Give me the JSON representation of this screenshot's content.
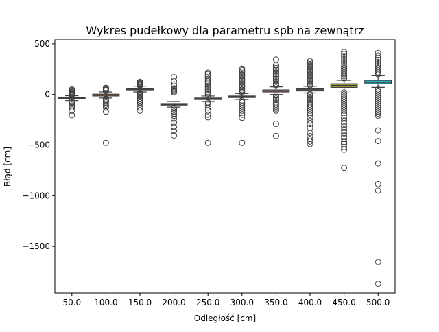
{
  "chart_data": {
    "type": "boxplot",
    "title": "Wykres pudełkowy dla parametru spb na zewnątrz",
    "xlabel": "Odległość [cm]",
    "ylabel": "Błąd [cm]",
    "ylim": [
      -1960,
      540
    ],
    "yticks": [
      500,
      0,
      -500,
      -1000,
      -1500
    ],
    "ytick_labels": [
      "500",
      "0",
      "−500",
      "−1000",
      "−1500"
    ],
    "grid": false,
    "legend": "none",
    "categories": [
      "50.0",
      "100.0",
      "150.0",
      "200.0",
      "250.0",
      "300.0",
      "350.0",
      "400.0",
      "450.0",
      "500.0"
    ],
    "boxes": [
      {
        "category": "50.0",
        "q1": -42,
        "median": -36,
        "q3": -30,
        "whislo": -60,
        "whishi": -12,
        "color": "#3274a1",
        "fliers": [
          50,
          40,
          30,
          22,
          15,
          8,
          2,
          -5,
          -70,
          -80,
          -95,
          -110,
          -130,
          -160,
          -205
        ]
      },
      {
        "category": "100.0",
        "q1": -15,
        "median": -6,
        "q3": 3,
        "whislo": -35,
        "whishi": 25,
        "color": "#e1812c",
        "fliers": [
          65,
          58,
          50,
          43,
          36,
          -45,
          -55,
          -65,
          -80,
          -100,
          -115,
          -130,
          -170,
          -478
        ]
      },
      {
        "category": "150.0",
        "q1": 45,
        "median": 52,
        "q3": 60,
        "whislo": 25,
        "whishi": 82,
        "color": "#3a923a",
        "fliers": [
          125,
          118,
          110,
          102,
          95,
          88,
          15,
          5,
          -5,
          -15,
          -25,
          -40,
          -60,
          -80,
          -100,
          -130,
          -160
        ]
      },
      {
        "category": "200.0",
        "q1": -105,
        "median": -98,
        "q3": -90,
        "whislo": -125,
        "whishi": -70,
        "color": "#c03d3e",
        "fliers": [
          170,
          130,
          100,
          80,
          60,
          50,
          40,
          30,
          20,
          -135,
          -150,
          -170,
          -190,
          -210,
          -240,
          -280,
          -320,
          -360,
          -405
        ]
      },
      {
        "category": "250.0",
        "q1": -50,
        "median": -42,
        "q3": -35,
        "whislo": -70,
        "whishi": -15,
        "color": "#9372b2",
        "fliers": [
          215,
          200,
          185,
          170,
          150,
          130,
          115,
          100,
          85,
          70,
          55,
          40,
          25,
          10,
          -5,
          -80,
          -100,
          -130,
          -160,
          -200,
          -225,
          -478
        ]
      },
      {
        "category": "300.0",
        "q1": -30,
        "median": -22,
        "q3": -15,
        "whislo": -50,
        "whishi": 10,
        "color": "#845b53",
        "fliers": [
          255,
          240,
          225,
          210,
          195,
          180,
          165,
          150,
          135,
          120,
          105,
          90,
          75,
          60,
          45,
          30,
          20,
          -60,
          -80,
          -100,
          -120,
          -140,
          -160,
          -180,
          -200,
          -230,
          -478
        ]
      },
      {
        "category": "350.0",
        "q1": 25,
        "median": 35,
        "q3": 45,
        "whislo": 0,
        "whishi": 75,
        "color": "#d684bd",
        "fliers": [
          345,
          290,
          275,
          260,
          245,
          230,
          215,
          200,
          185,
          170,
          155,
          140,
          125,
          110,
          95,
          85,
          -10,
          -25,
          -40,
          -55,
          -70,
          -85,
          -100,
          -120,
          -140,
          -160,
          -290,
          -410
        ]
      },
      {
        "category": "400.0",
        "q1": 35,
        "median": 45,
        "q3": 55,
        "whislo": 15,
        "whishi": 80,
        "color": "#7f7f7f",
        "fliers": [
          330,
          315,
          300,
          285,
          270,
          255,
          240,
          225,
          210,
          195,
          180,
          165,
          150,
          135,
          120,
          105,
          90,
          5,
          -10,
          -25,
          -40,
          -55,
          -70,
          -85,
          -100,
          -120,
          -140,
          -160,
          -180,
          -200,
          -230,
          -260,
          -290,
          -330,
          -380,
          -410,
          -440,
          -465,
          -490
        ]
      },
      {
        "category": "450.0",
        "q1": 70,
        "median": 90,
        "q3": 105,
        "whislo": 35,
        "whishi": 140,
        "color": "#a9aa35",
        "fliers": [
          420,
          400,
          380,
          360,
          340,
          320,
          300,
          280,
          260,
          240,
          220,
          200,
          180,
          160,
          20,
          0,
          -20,
          -40,
          -60,
          -80,
          -100,
          -120,
          -140,
          -160,
          -180,
          -200,
          -230,
          -260,
          -290,
          -320,
          -350,
          -380,
          -410,
          -440,
          -470,
          -490,
          -520,
          -545,
          -725
        ]
      },
      {
        "category": "500.0",
        "q1": 105,
        "median": 120,
        "q3": 140,
        "whislo": 70,
        "whishi": 185,
        "color": "#2eb0c0",
        "fliers": [
          410,
          385,
          360,
          340,
          320,
          300,
          280,
          260,
          240,
          220,
          200,
          50,
          30,
          10,
          -10,
          -30,
          -50,
          -70,
          -90,
          -110,
          -130,
          -150,
          -170,
          -190,
          -210,
          -355,
          -460,
          -680,
          -885,
          -950,
          -1655,
          -1870
        ]
      }
    ]
  }
}
